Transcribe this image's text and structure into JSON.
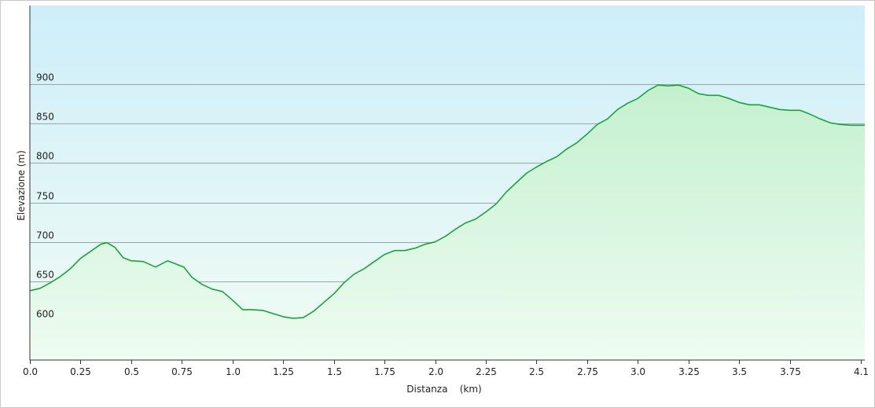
{
  "chart_data": {
    "type": "area",
    "title": "",
    "xlabel": "Distanza    (km)",
    "ylabel": "Elevazione (m)",
    "xlim": [
      0,
      4.12
    ],
    "ylim": [
      550,
      1000
    ],
    "grid": "horizontal",
    "colors": {
      "line": "#1aa33a",
      "fill_top": "#c4f0cf",
      "fill_bottom": "#eefcf1",
      "bg_top": "#cdeefa",
      "bg_bottom": "#f1fcf3",
      "grid": "#9aa4aa"
    },
    "x_ticks": [
      {
        "value": 0.0,
        "label": "0.0"
      },
      {
        "value": 0.25,
        "label": "0.25"
      },
      {
        "value": 0.5,
        "label": "0.5"
      },
      {
        "value": 0.75,
        "label": "0.75"
      },
      {
        "value": 1.0,
        "label": "1.0"
      },
      {
        "value": 1.25,
        "label": "1.25"
      },
      {
        "value": 1.5,
        "label": "1.5"
      },
      {
        "value": 1.75,
        "label": "1.75"
      },
      {
        "value": 2.0,
        "label": "2.0"
      },
      {
        "value": 2.25,
        "label": "2.25"
      },
      {
        "value": 2.5,
        "label": "2.5"
      },
      {
        "value": 2.75,
        "label": "2.75"
      },
      {
        "value": 3.0,
        "label": "3.0"
      },
      {
        "value": 3.25,
        "label": "3.25"
      },
      {
        "value": 3.5,
        "label": "3.5"
      },
      {
        "value": 3.75,
        "label": "3.75"
      },
      {
        "value": 4.1,
        "label": "4.1"
      }
    ],
    "y_ticks": [
      {
        "value": 600,
        "label": "600"
      },
      {
        "value": 650,
        "label": "650"
      },
      {
        "value": 700,
        "label": "700"
      },
      {
        "value": 750,
        "label": "750"
      },
      {
        "value": 800,
        "label": "800"
      },
      {
        "value": 850,
        "label": "850"
      },
      {
        "value": 900,
        "label": "900"
      }
    ],
    "series": [
      {
        "x": [
          0.0,
          0.05,
          0.1,
          0.15,
          0.2,
          0.25,
          0.3,
          0.35,
          0.38,
          0.42,
          0.46,
          0.5,
          0.56,
          0.62,
          0.68,
          0.72,
          0.76,
          0.8,
          0.85,
          0.9,
          0.95,
          1.0,
          1.05,
          1.1,
          1.15,
          1.2,
          1.25,
          1.3,
          1.35,
          1.4,
          1.45,
          1.5,
          1.55,
          1.6,
          1.65,
          1.7,
          1.75,
          1.8,
          1.85,
          1.9,
          1.95,
          2.0,
          2.05,
          2.1,
          2.15,
          2.2,
          2.25,
          2.3,
          2.35,
          2.4,
          2.45,
          2.5,
          2.55,
          2.6,
          2.65,
          2.7,
          2.75,
          2.8,
          2.85,
          2.9,
          2.95,
          3.0,
          3.05,
          3.1,
          3.15,
          3.2,
          3.25,
          3.3,
          3.35,
          3.4,
          3.45,
          3.5,
          3.55,
          3.6,
          3.65,
          3.7,
          3.75,
          3.8,
          3.85,
          3.9,
          3.95,
          4.0,
          4.05,
          4.1,
          4.12
        ],
        "y": [
          638,
          641,
          648,
          656,
          666,
          679,
          688,
          697,
          699,
          693,
          680,
          676,
          675,
          668,
          676,
          672,
          668,
          655,
          646,
          640,
          637,
          626,
          614,
          614,
          613,
          609,
          605,
          603,
          604,
          612,
          623,
          634,
          648,
          659,
          666,
          675,
          684,
          689,
          689,
          692,
          697,
          700,
          707,
          716,
          724,
          729,
          738,
          748,
          763,
          775,
          787,
          795,
          802,
          808,
          818,
          826,
          837,
          849,
          856,
          868,
          876,
          882,
          892,
          899,
          898,
          899,
          895,
          888,
          886,
          886,
          882,
          877,
          874,
          874,
          871,
          868,
          867,
          867,
          862,
          856,
          851,
          849,
          848,
          848,
          848
        ]
      }
    ]
  }
}
